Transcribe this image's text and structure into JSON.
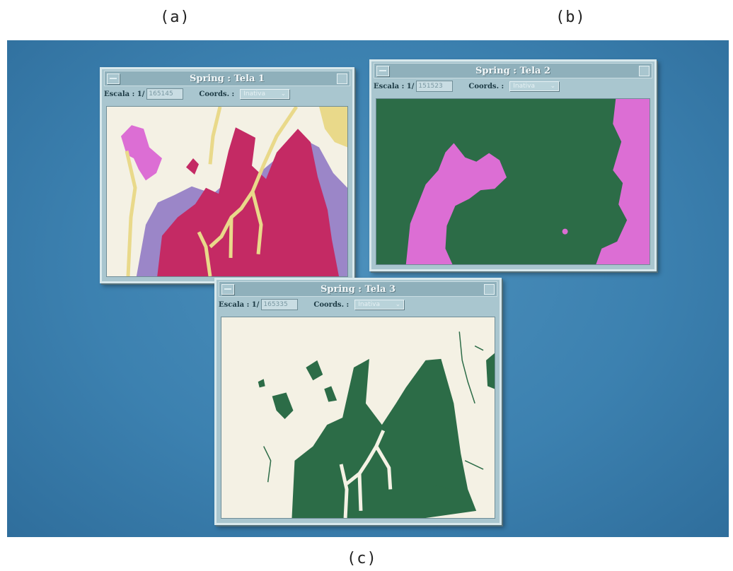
{
  "captions": {
    "a": "(a)",
    "b": "(b)",
    "c": "(c)"
  },
  "windows": [
    {
      "title": "Spring : Tela 1",
      "scale_label": "Escala : 1/",
      "scale_value": "165145",
      "coords_label": "Coords. :",
      "coords_value": "Inativa"
    },
    {
      "title": "Spring : Tela 2",
      "scale_label": "Escala : 1/",
      "scale_value": "151523",
      "coords_label": "Coords. :",
      "coords_value": "Inativa"
    },
    {
      "title": "Spring : Tela 3",
      "scale_label": "Escala : 1/",
      "scale_value": "165335",
      "coords_label": "Coords. :",
      "coords_value": "Inativa"
    }
  ],
  "colors": {
    "desktop": "#3a7fad",
    "window": "#a9c6cf",
    "map_background_light": "#f4f1e4",
    "class_crimson": "#c42a64",
    "class_lavender": "#9b86c8",
    "class_pink": "#dc6ed4",
    "class_yellow": "#e9d98a",
    "class_green": "#2c6c47"
  },
  "icons": {
    "window_menu": "window-menu-icon",
    "dropdown": "chevron-down-icon"
  }
}
